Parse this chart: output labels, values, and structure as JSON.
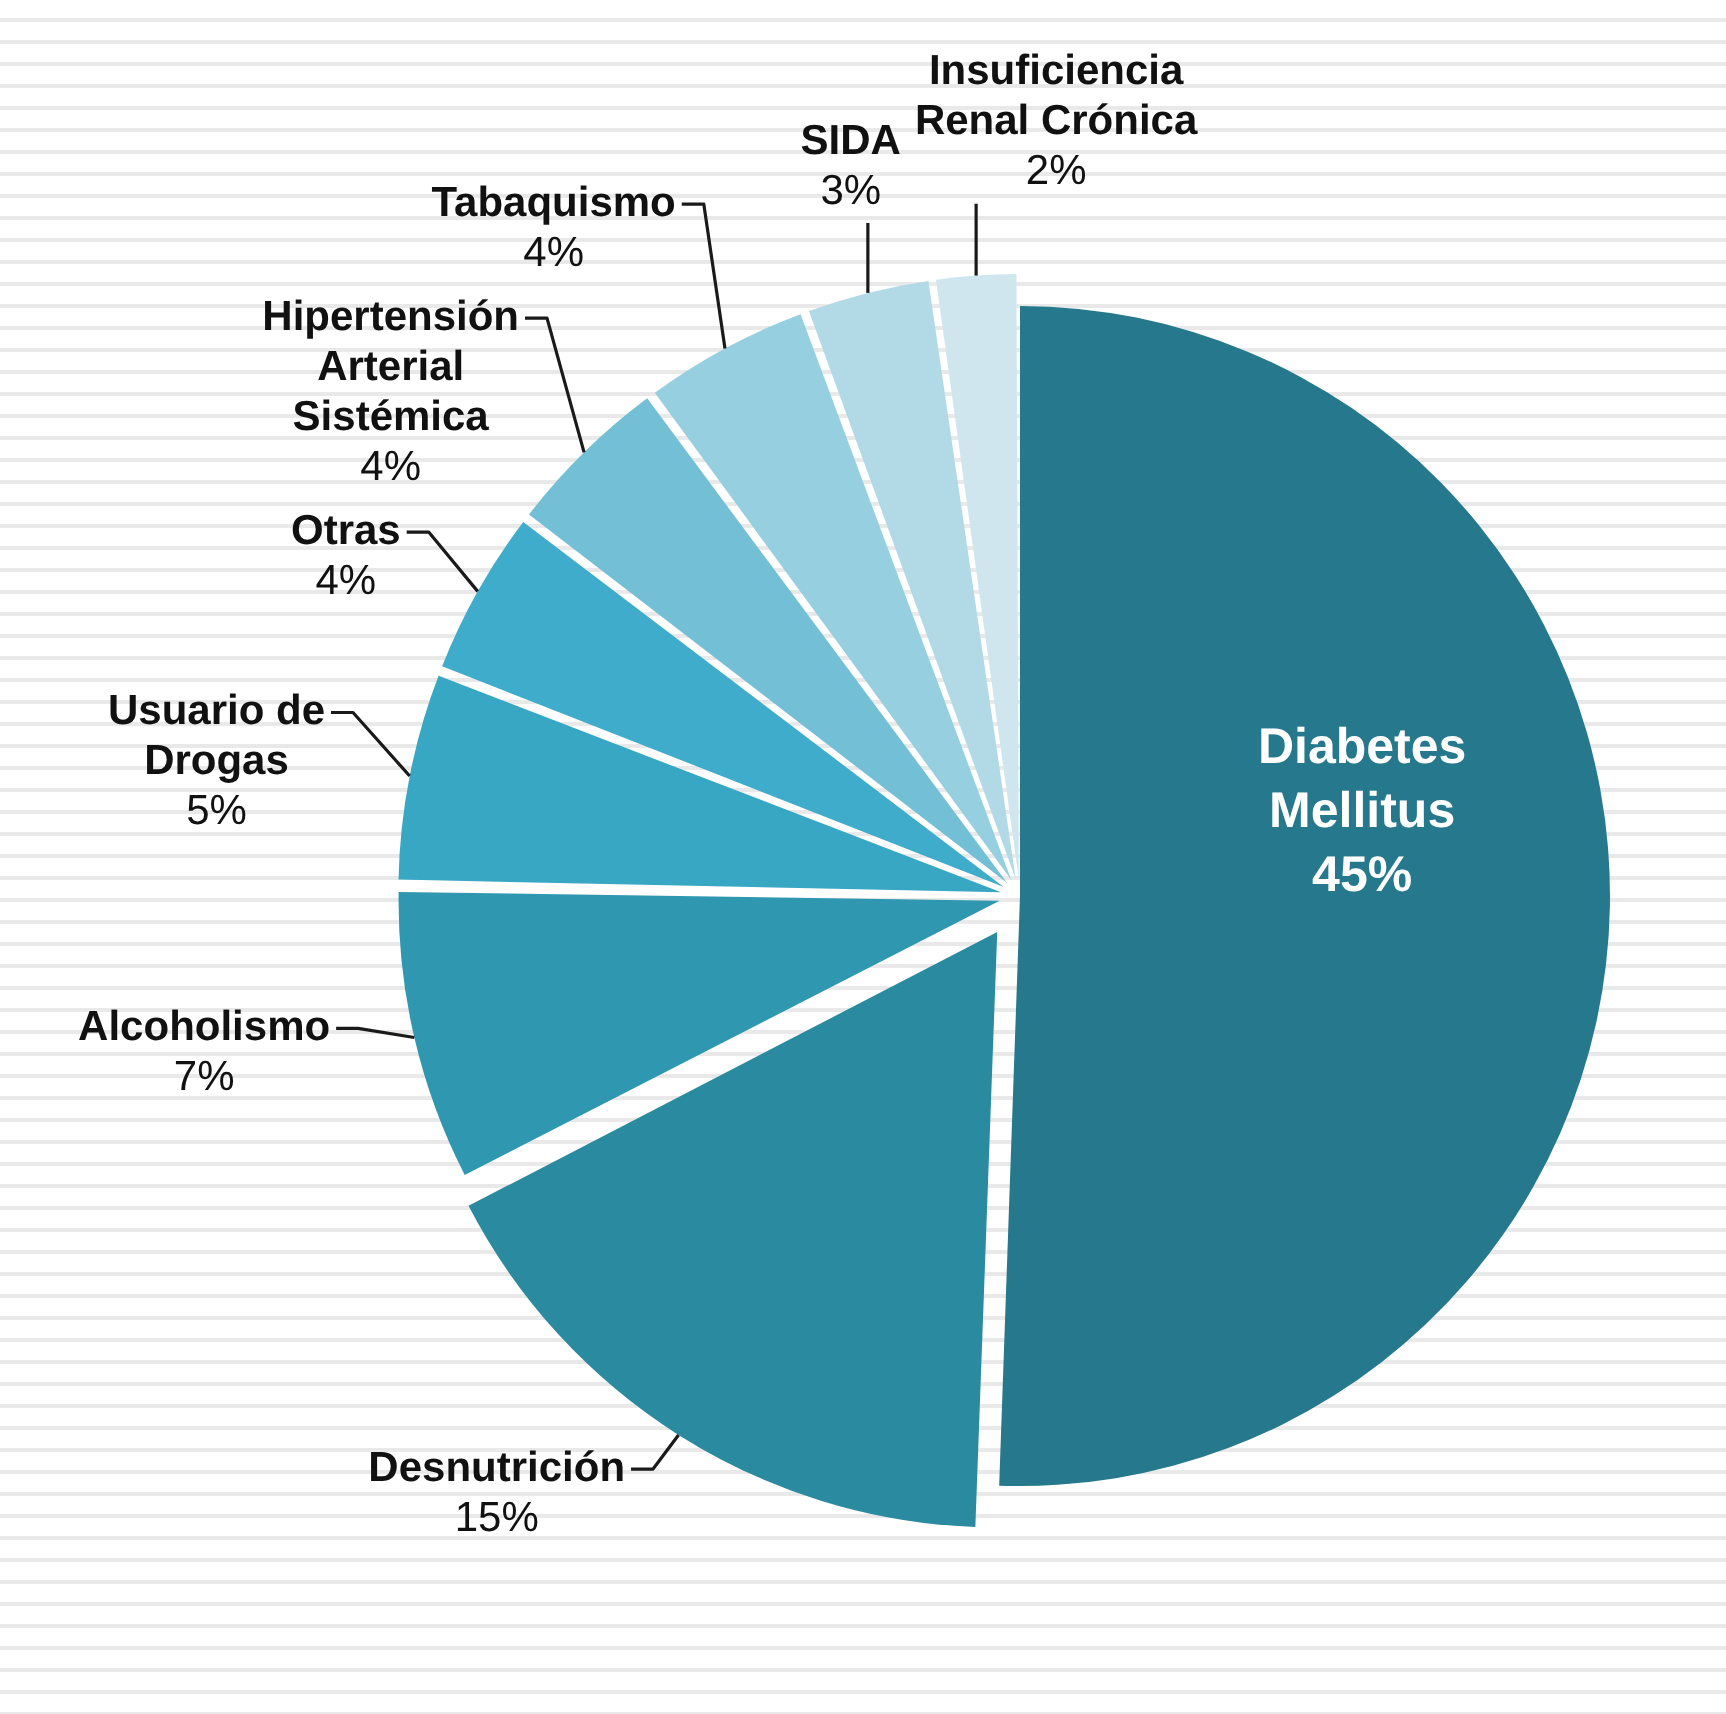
{
  "chart_data": {
    "type": "pie",
    "categories": [
      "Diabetes Mellitus",
      "Desnutrición",
      "Alcoholismo",
      "Usuario de Drogas",
      "Otras",
      "Hipertensión Arterial Sistémica",
      "Tabaquismo",
      "SIDA",
      "Insuficiencia Renal Crónica"
    ],
    "values": [
      45,
      15,
      7,
      5,
      4,
      4,
      4,
      3,
      2
    ],
    "colors": [
      "#26788c",
      "#2a8aa0",
      "#2f97b0",
      "#37a7c4",
      "#3faccb",
      "#73c0d6",
      "#95cfe0",
      "#b2dae6",
      "#cfe6ee"
    ],
    "value_labels": [
      "45%",
      "15%",
      "7%",
      "5%",
      "4%",
      "4%",
      "4%",
      "3%",
      "2%"
    ]
  }
}
